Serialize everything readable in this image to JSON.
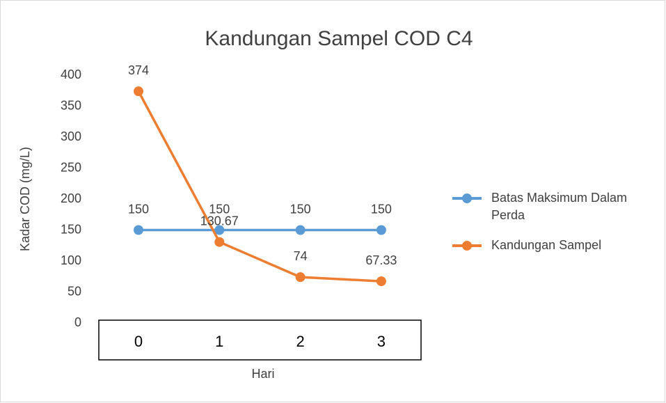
{
  "chart_data": {
    "type": "line",
    "title": "Kandungan Sampel COD C4",
    "x_label": "Hari",
    "y_label": "Kadar COD (mg/L)",
    "categories": [
      "0",
      "1",
      "2",
      "3"
    ],
    "series": [
      {
        "name": "Batas Maksimum Dalam Perda",
        "color": "#5b9bd5",
        "values": [
          150,
          150,
          150,
          150
        ]
      },
      {
        "name": "Kandungan Sampel",
        "color": "#ed7d31",
        "values": [
          374,
          130.67,
          74,
          67.33
        ]
      }
    ],
    "ylim": [
      0,
      400
    ],
    "yticks": [
      0,
      50,
      100,
      150,
      200,
      250,
      300,
      350,
      400
    ],
    "grid": false,
    "legend": "right"
  }
}
